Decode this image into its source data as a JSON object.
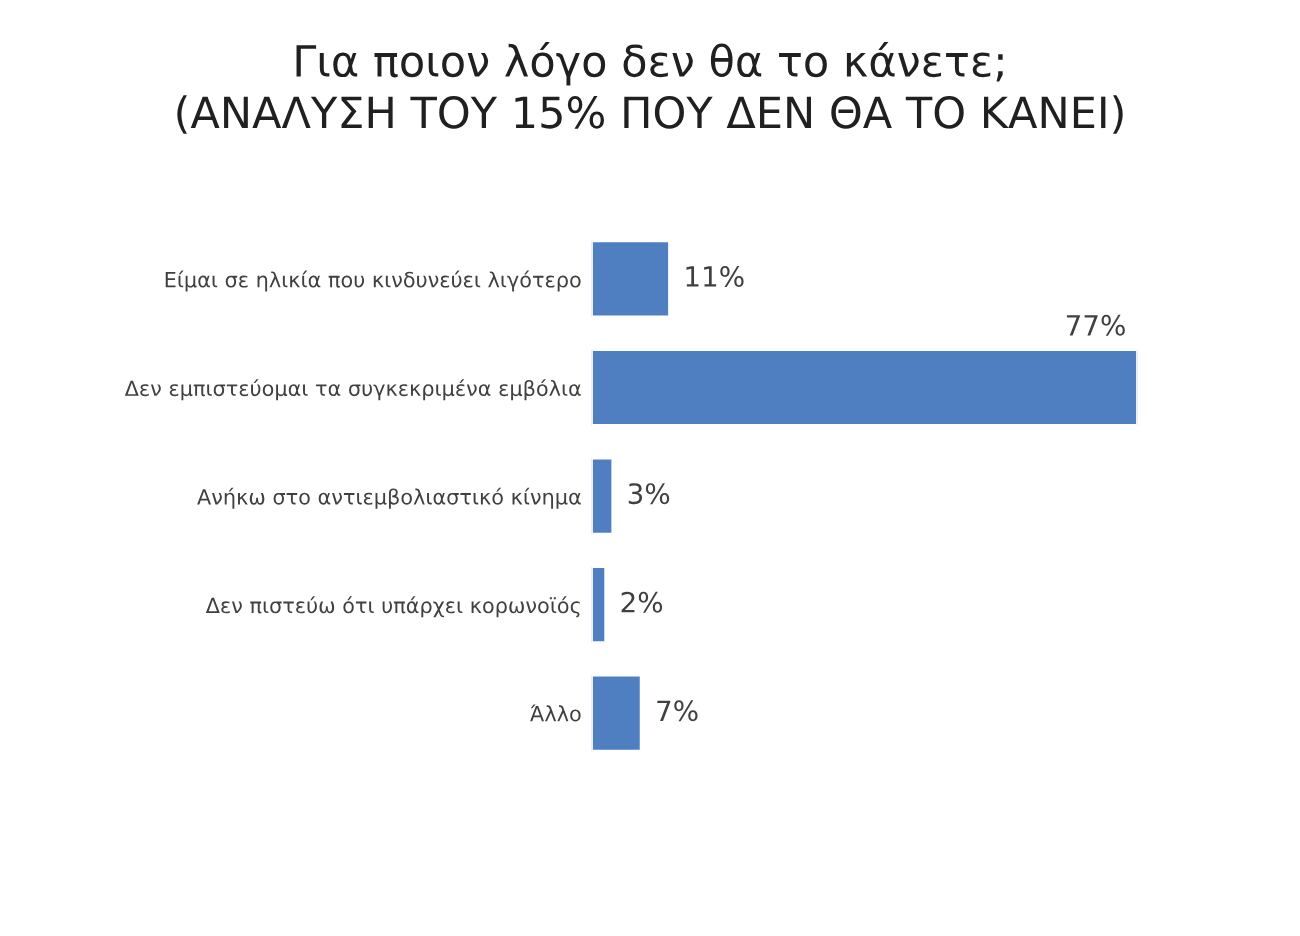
{
  "chart_data": {
    "type": "bar",
    "orientation": "horizontal",
    "title": "Για ποιον λόγο δεν θα το κάνετε;\n(ΑΝΑΛΥΣΗ ΤΟΥ 15% ΠΟΥ ΔΕΝ ΘΑ ΤΟ ΚΑΝΕΙ)",
    "categories": [
      "Είμαι σε ηλικία που κινδυνεύει λιγότερο",
      "Δεν εμπιστεύομαι τα συγκεκριμένα εμβόλια",
      "Ανήκω στο αντιεμβολιαστικό κίνημα",
      "Δεν πιστεύω ότι υπάρχει κορωνοϊός",
      "Άλλο"
    ],
    "values": [
      11,
      77,
      3,
      2,
      7
    ],
    "value_labels": [
      "11%",
      "77%",
      "3%",
      "2%",
      "7%"
    ],
    "color": "#4f7fc1",
    "grid": false,
    "legend": false
  }
}
